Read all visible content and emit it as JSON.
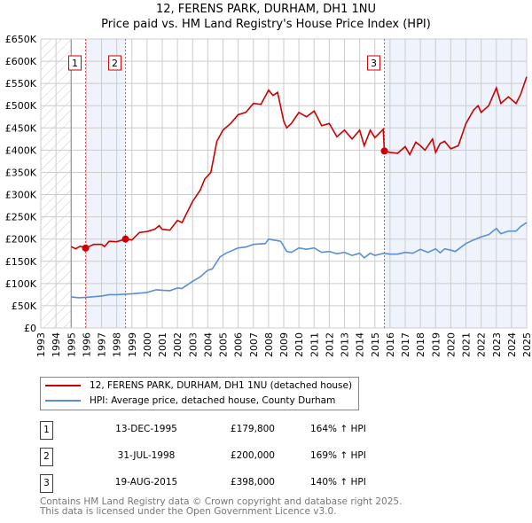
{
  "chart_data": {
    "type": "line",
    "title": "12, FERENS PARK, DURHAM, DH1 1NU",
    "subtitle": "Price paid vs. HM Land Registry's House Price Index (HPI)",
    "xlim": [
      1993,
      2025
    ],
    "ylim": [
      0,
      650000
    ],
    "x_ticks": [
      "1993",
      "1994",
      "1995",
      "1996",
      "1997",
      "1998",
      "1999",
      "2000",
      "2001",
      "2002",
      "2003",
      "2004",
      "2005",
      "2006",
      "2007",
      "2008",
      "2009",
      "2010",
      "2011",
      "2012",
      "2013",
      "2014",
      "2015",
      "2016",
      "2017",
      "2018",
      "2019",
      "2020",
      "2021",
      "2022",
      "2023",
      "2024",
      "2025"
    ],
    "y_ticks": [
      {
        "v": 0,
        "label": "£0"
      },
      {
        "v": 50000,
        "label": "£50K"
      },
      {
        "v": 100000,
        "label": "£100K"
      },
      {
        "v": 150000,
        "label": "£150K"
      },
      {
        "v": 200000,
        "label": "£200K"
      },
      {
        "v": 250000,
        "label": "£250K"
      },
      {
        "v": 300000,
        "label": "£300K"
      },
      {
        "v": 350000,
        "label": "£350K"
      },
      {
        "v": 400000,
        "label": "£400K"
      },
      {
        "v": 450000,
        "label": "£450K"
      },
      {
        "v": 500000,
        "label": "£500K"
      },
      {
        "v": 550000,
        "label": "£550K"
      },
      {
        "v": 600000,
        "label": "£600K"
      },
      {
        "v": 650000,
        "label": "£650K"
      }
    ],
    "grid": true,
    "hatched_range": [
      1993,
      1995
    ],
    "shaded_ranges": [
      [
        1995.95,
        1998.58
      ],
      [
        2015.63,
        2025
      ]
    ],
    "series": [
      {
        "name": "12, FERENS PARK, DURHAM, DH1 1NU (detached house)",
        "color": "#cc0000",
        "points": [
          [
            1995,
            183
          ],
          [
            1995.3,
            178
          ],
          [
            1995.6,
            184
          ],
          [
            1995.95,
            179.8
          ],
          [
            1996.5,
            188
          ],
          [
            1997,
            188
          ],
          [
            1997.2,
            183
          ],
          [
            1997.5,
            195
          ],
          [
            1998,
            194
          ],
          [
            1998.58,
            200
          ],
          [
            1999,
            198
          ],
          [
            1999.5,
            215
          ],
          [
            2000,
            217
          ],
          [
            2000.5,
            222
          ],
          [
            2000.8,
            230
          ],
          [
            2001,
            222
          ],
          [
            2001.5,
            220
          ],
          [
            2002,
            242
          ],
          [
            2002.3,
            237
          ],
          [
            2003,
            285
          ],
          [
            2003.5,
            310
          ],
          [
            2003.8,
            335
          ],
          [
            2004.2,
            350
          ],
          [
            2004.6,
            420
          ],
          [
            2005,
            445
          ],
          [
            2005.5,
            460
          ],
          [
            2006,
            480
          ],
          [
            2006.5,
            485
          ],
          [
            2007,
            505
          ],
          [
            2007.5,
            503
          ],
          [
            2008,
            535
          ],
          [
            2008.3,
            523
          ],
          [
            2008.6,
            530
          ],
          [
            2009,
            465
          ],
          [
            2009.2,
            450
          ],
          [
            2009.5,
            460
          ],
          [
            2010,
            485
          ],
          [
            2010.5,
            475
          ],
          [
            2011,
            488
          ],
          [
            2011.5,
            455
          ],
          [
            2012,
            460
          ],
          [
            2012.5,
            430
          ],
          [
            2013,
            445
          ],
          [
            2013.5,
            425
          ],
          [
            2014,
            445
          ],
          [
            2014.3,
            410
          ],
          [
            2014.7,
            445
          ],
          [
            2015,
            428
          ],
          [
            2015.55,
            447
          ],
          [
            2015.63,
            398
          ],
          [
            2016,
            395
          ],
          [
            2016.5,
            393
          ],
          [
            2017,
            408
          ],
          [
            2017.3,
            390
          ],
          [
            2017.7,
            418
          ],
          [
            2018,
            410
          ],
          [
            2018.3,
            400
          ],
          [
            2018.8,
            425
          ],
          [
            2019,
            395
          ],
          [
            2019.3,
            415
          ],
          [
            2019.6,
            420
          ],
          [
            2020,
            403
          ],
          [
            2020.5,
            410
          ],
          [
            2021,
            460
          ],
          [
            2021.5,
            490
          ],
          [
            2021.8,
            500
          ],
          [
            2022,
            485
          ],
          [
            2022.5,
            500
          ],
          [
            2023,
            540
          ],
          [
            2023.3,
            505
          ],
          [
            2023.8,
            520
          ],
          [
            2024.3,
            505
          ],
          [
            2024.6,
            525
          ],
          [
            2025,
            565
          ]
        ]
      },
      {
        "name": "HPI: Average price, detached house, County Durham",
        "color": "#5b8fd4",
        "points": [
          [
            1995,
            70
          ],
          [
            1995.5,
            68
          ],
          [
            1996,
            69
          ],
          [
            1997,
            72
          ],
          [
            1997.5,
            75
          ],
          [
            1998,
            75
          ],
          [
            1999,
            77
          ],
          [
            2000,
            80
          ],
          [
            2000.6,
            86
          ],
          [
            2001,
            85
          ],
          [
            2001.5,
            84
          ],
          [
            2002,
            90
          ],
          [
            2002.3,
            89
          ],
          [
            2003,
            105
          ],
          [
            2003.5,
            115
          ],
          [
            2004,
            130
          ],
          [
            2004.3,
            133
          ],
          [
            2004.8,
            160
          ],
          [
            2005.2,
            168
          ],
          [
            2006,
            180
          ],
          [
            2006.5,
            182
          ],
          [
            2007,
            188
          ],
          [
            2007.8,
            190
          ],
          [
            2008,
            200
          ],
          [
            2008.3,
            198
          ],
          [
            2008.8,
            195
          ],
          [
            2009.2,
            172
          ],
          [
            2009.5,
            170
          ],
          [
            2010,
            180
          ],
          [
            2010.5,
            177
          ],
          [
            2011,
            180
          ],
          [
            2011.5,
            170
          ],
          [
            2012,
            172
          ],
          [
            2012.5,
            167
          ],
          [
            2013,
            170
          ],
          [
            2013.5,
            163
          ],
          [
            2014,
            168
          ],
          [
            2014.3,
            158
          ],
          [
            2014.7,
            168
          ],
          [
            2015,
            163
          ],
          [
            2015.6,
            168
          ],
          [
            2016,
            166
          ],
          [
            2016.5,
            166
          ],
          [
            2017,
            170
          ],
          [
            2017.5,
            168
          ],
          [
            2018,
            177
          ],
          [
            2018.5,
            170
          ],
          [
            2019,
            178
          ],
          [
            2019.3,
            169
          ],
          [
            2019.6,
            178
          ],
          [
            2020,
            175
          ],
          [
            2020.3,
            172
          ],
          [
            2021,
            190
          ],
          [
            2021.5,
            198
          ],
          [
            2022,
            205
          ],
          [
            2022.5,
            210
          ],
          [
            2023,
            224
          ],
          [
            2023.3,
            212
          ],
          [
            2023.8,
            218
          ],
          [
            2024.3,
            218
          ],
          [
            2024.6,
            228
          ],
          [
            2025,
            237
          ]
        ]
      }
    ],
    "value_unit": "thousands GBP",
    "sales": [
      {
        "id": "1",
        "x": 1995.95,
        "value": 179.8
      },
      {
        "id": "2",
        "x": 1998.58,
        "value": 200
      },
      {
        "id": "3",
        "x": 2015.63,
        "value": 398
      }
    ],
    "legend_placement": "below"
  },
  "table": [
    {
      "num": "1",
      "date": "13-DEC-1995",
      "price": "£179,800",
      "hpi": "164% ↑ HPI"
    },
    {
      "num": "2",
      "date": "31-JUL-1998",
      "price": "£200,000",
      "hpi": "169% ↑ HPI"
    },
    {
      "num": "3",
      "date": "19-AUG-2015",
      "price": "£398,000",
      "hpi": "140% ↑ HPI"
    }
  ],
  "footer": {
    "line1": "Contains HM Land Registry data © Crown copyright and database right 2025.",
    "line2": "This data is licensed under the Open Government Licence v3.0."
  }
}
